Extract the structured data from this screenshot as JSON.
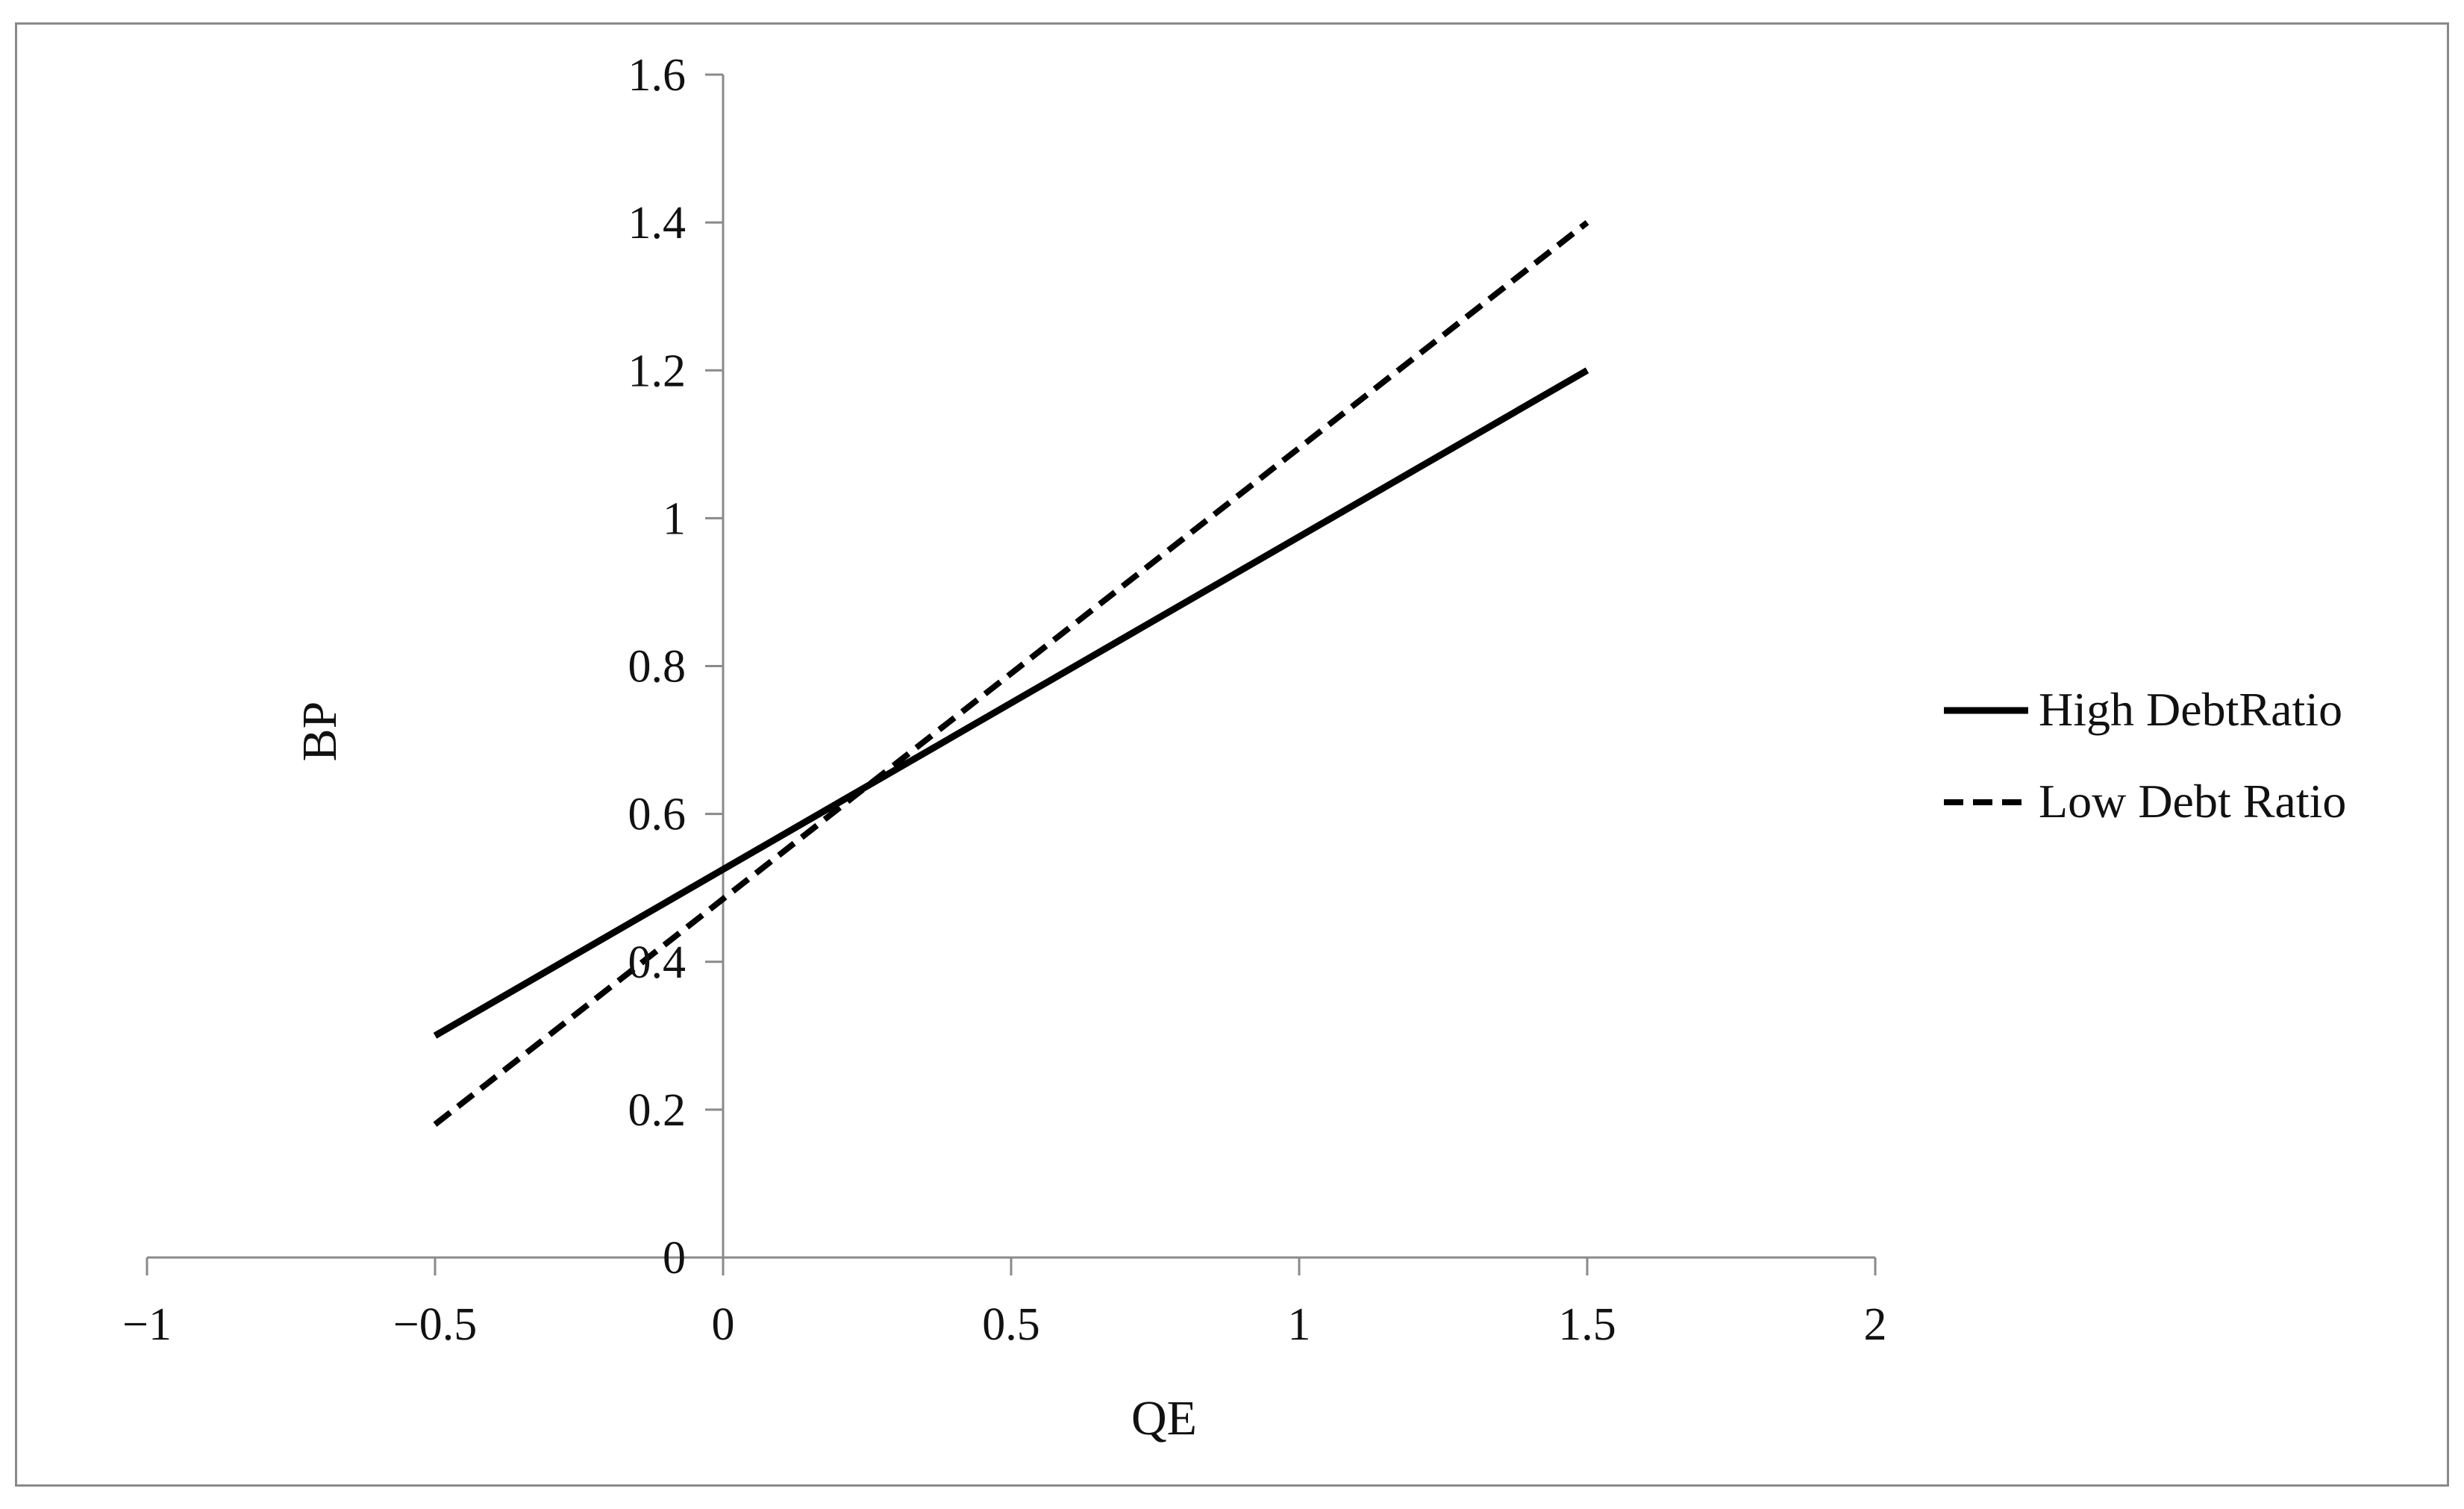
{
  "chart_data": {
    "type": "line",
    "title": "",
    "xlabel": "QE",
    "ylabel": "BP",
    "xlim": [
      -1,
      2
    ],
    "ylim": [
      0,
      1.6
    ],
    "x_ticks": [
      -1,
      -0.5,
      0,
      0.5,
      1,
      1.5,
      2
    ],
    "x_tick_labels": [
      "−1",
      "−0.5",
      "0",
      "0.5",
      "1",
      "1.5",
      "2"
    ],
    "y_ticks": [
      0,
      0.2,
      0.4,
      0.6,
      0.8,
      1,
      1.2,
      1.4,
      1.6
    ],
    "y_tick_labels": [
      "0",
      "0.2",
      "0.4",
      "0.6",
      "0.8",
      "1",
      "1.2",
      "1.4",
      "1.6"
    ],
    "grid": false,
    "legend_position": "right",
    "series": [
      {
        "name": "High DebtRatio",
        "style": "solid",
        "color": "#000000",
        "x": [
          -0.5,
          1.5
        ],
        "y": [
          0.3,
          1.2
        ]
      },
      {
        "name": "Low Debt Ratio",
        "style": "dashed",
        "color": "#000000",
        "x": [
          -0.5,
          1.5
        ],
        "y": [
          0.18,
          1.4
        ]
      }
    ]
  }
}
